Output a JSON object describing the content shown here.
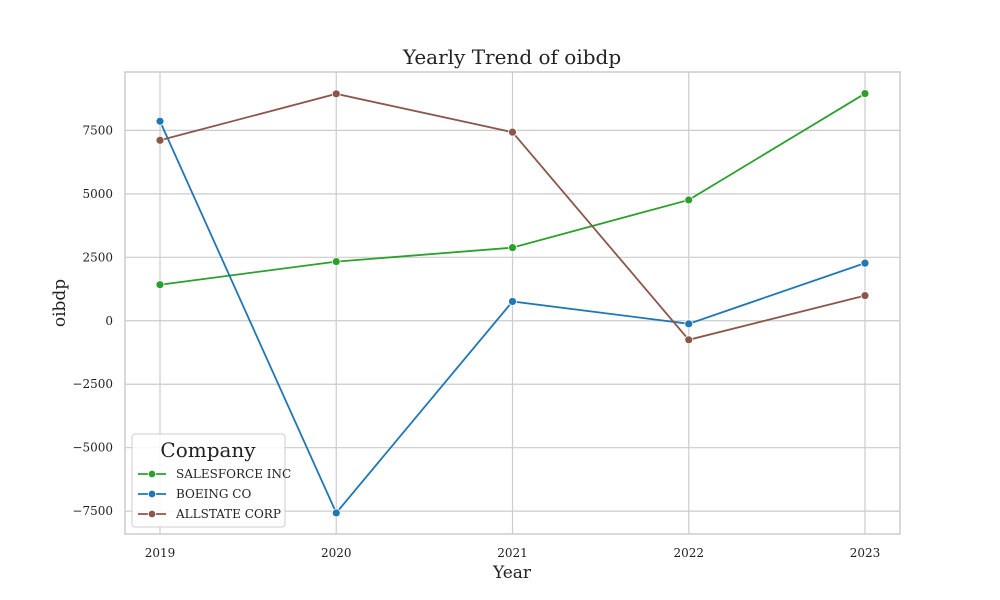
{
  "chart_data": {
    "type": "line",
    "title": "Yearly Trend of oibdp",
    "xlabel": "Year",
    "ylabel": "oibdp",
    "x": [
      2019,
      2020,
      2021,
      2022,
      2023
    ],
    "x_ticks": [
      "2019",
      "2020",
      "2021",
      "2022",
      "2023"
    ],
    "y_ticks": [
      -7500,
      -5000,
      -2500,
      0,
      2500,
      5000,
      7500
    ],
    "y_tick_labels": [
      "−7500",
      "−5000",
      "−2500",
      "0",
      "2500",
      "5000",
      "7500"
    ],
    "ylim": [
      -8400,
      9800
    ],
    "grid": true,
    "legend_title": "Company",
    "legend_position": "lower-left",
    "series": [
      {
        "name": "SALESFORCE INC",
        "color": "#2ca02c",
        "values": [
          1420,
          2330,
          2880,
          4760,
          8950
        ]
      },
      {
        "name": "BOEING CO",
        "color": "#1f77b4",
        "values": [
          7860,
          -7570,
          760,
          -120,
          2270
        ]
      },
      {
        "name": "ALLSTATE CORP",
        "color": "#8c564b",
        "values": [
          7110,
          8940,
          7430,
          -750,
          990
        ]
      }
    ]
  }
}
